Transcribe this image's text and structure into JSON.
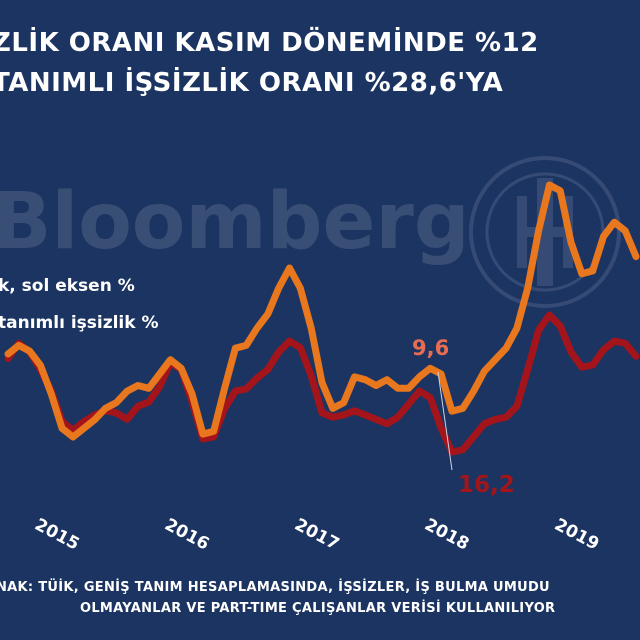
{
  "title": {
    "line1": "ZLİK ORANI KASIM DÖNEMİNDE %12",
    "line2": "TANIMLI İŞSİZLİK ORANI %28,6'YA"
  },
  "watermark": {
    "text": "Bloomberg",
    "logo_icon": "bloomberg-ht-logo-icon"
  },
  "source": {
    "line1": "NAK: TÜİK, GENİŞ TANIM HESAPLAMASINDA, İŞSİZLER, İŞ BULMA UMUDU",
    "line2": "OLMAYANLAR VE PART-TIME ÇALIŞANLAR VERİSİ KULLANILIYOR"
  },
  "colors": {
    "background": "#1c3461",
    "orange": "#e8771e",
    "red": "#a3141b",
    "white": "#ffffff",
    "salmon": "#e86c52"
  },
  "chart_data": {
    "type": "line",
    "x_tick_labels": [
      "2015",
      "2016",
      "2017",
      "2018",
      "2019"
    ],
    "x": [
      "2014-11",
      "2014-12",
      "2015-01",
      "2015-02",
      "2015-03",
      "2015-04",
      "2015-05",
      "2015-06",
      "2015-07",
      "2015-08",
      "2015-09",
      "2015-10",
      "2015-11",
      "2015-12",
      "2016-01",
      "2016-02",
      "2016-03",
      "2016-04",
      "2016-05",
      "2016-06",
      "2016-07",
      "2016-08",
      "2016-09",
      "2016-10",
      "2016-11",
      "2016-12",
      "2017-01",
      "2017-02",
      "2017-03",
      "2017-04",
      "2017-05",
      "2017-06",
      "2017-07",
      "2017-08",
      "2017-09",
      "2017-10",
      "2017-11",
      "2017-12",
      "2018-01",
      "2018-02",
      "2018-03",
      "2018-04",
      "2018-05",
      "2018-06",
      "2018-07",
      "2018-08",
      "2018-09",
      "2018-10",
      "2018-11",
      "2018-12",
      "2019-01",
      "2019-02",
      "2019-03",
      "2019-04",
      "2019-05",
      "2019-06",
      "2019-07",
      "2019-08",
      "2019-09"
    ],
    "legend": [
      {
        "text": "k, sol eksen %",
        "color": "#ffffff"
      },
      {
        "text": "tanımlı işsizlik %",
        "color": "#ffffff"
      }
    ],
    "series": [
      {
        "color": "#e8771e",
        "values": [
          10.6,
          10.9,
          10.7,
          10.2,
          9.2,
          8.0,
          7.7,
          8.0,
          8.3,
          8.7,
          8.9,
          9.3,
          9.5,
          9.4,
          9.9,
          10.4,
          10.1,
          9.2,
          7.8,
          7.9,
          9.4,
          10.8,
          10.9,
          11.5,
          12.0,
          12.9,
          13.6,
          12.9,
          11.5,
          9.6,
          8.7,
          8.9,
          9.8,
          9.7,
          9.5,
          9.7,
          9.4,
          9.4,
          9.8,
          10.1,
          9.9,
          8.6,
          8.7,
          9.3,
          10.0,
          10.4,
          10.8,
          11.5,
          12.9,
          14.9,
          16.5,
          16.3,
          14.5,
          13.4,
          13.5,
          14.7,
          15.2,
          14.9,
          14.0
        ]
      },
      {
        "color": "#a3141b",
        "values": [
          24.5,
          25.2,
          24.8,
          24.0,
          23.0,
          21.6,
          21.2,
          21.6,
          21.9,
          22.1,
          22.0,
          21.7,
          22.3,
          22.5,
          23.2,
          24.3,
          24.0,
          22.5,
          20.8,
          20.9,
          22.2,
          23.0,
          23.1,
          23.6,
          24.0,
          24.8,
          25.3,
          25.0,
          23.7,
          22.0,
          21.8,
          21.9,
          22.1,
          21.9,
          21.7,
          21.5,
          21.8,
          22.4,
          23.0,
          22.7,
          21.3,
          20.2,
          20.3,
          20.9,
          21.5,
          21.7,
          21.8,
          22.3,
          24.0,
          25.8,
          26.5,
          26.0,
          24.8,
          24.1,
          24.2,
          24.9,
          25.3,
          25.2,
          24.6
        ]
      }
    ],
    "annotations": [
      {
        "text": "9,6",
        "color": "#e86c52"
      },
      {
        "text": "16,2",
        "color": "#a3141b"
      }
    ]
  }
}
